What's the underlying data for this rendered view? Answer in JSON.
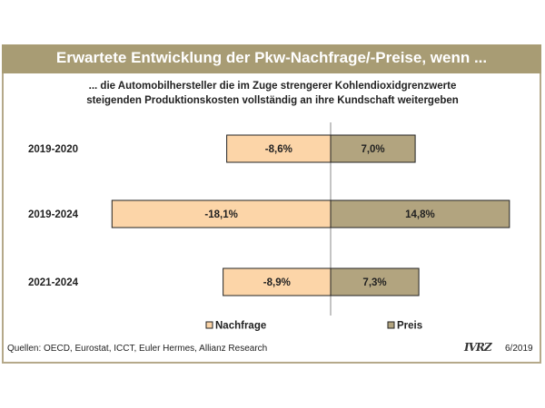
{
  "title": "Erwartete Entwicklung der Pkw-Nachfrage/-Preise, wenn ...",
  "subtitle_lines": [
    "... die Automobilhersteller die im Zuge strengerer Kohlendioxidgrenzwerte",
    "steigenden Produktionskosten vollständig an ihre Kundschaft weitergeben"
  ],
  "footer": {
    "source": "Quellen: OECD, Eurostat, ICCT, Euler Hermes, Allianz Research",
    "logo": "IVRZ",
    "date": "6/2019"
  },
  "colors": {
    "title_bar": "#a89c74",
    "nachfrage": "#fcd5a8",
    "preis": "#b2a47f"
  },
  "chart_data": {
    "type": "bar",
    "orientation": "horizontal",
    "categories": [
      "2019-2020",
      "2019-2024",
      "2021-2024"
    ],
    "series": [
      {
        "name": "Nachfrage",
        "values": [
          -8.6,
          -18.1,
          -8.9
        ],
        "labels": [
          "-8,6%",
          "-18,1%",
          "-8,9%"
        ]
      },
      {
        "name": "Preis",
        "values": [
          7.0,
          14.8,
          7.3
        ],
        "labels": [
          "7,0%",
          "14,8%",
          "7,3%"
        ]
      }
    ],
    "legend_position": "bottom",
    "grid": false
  }
}
